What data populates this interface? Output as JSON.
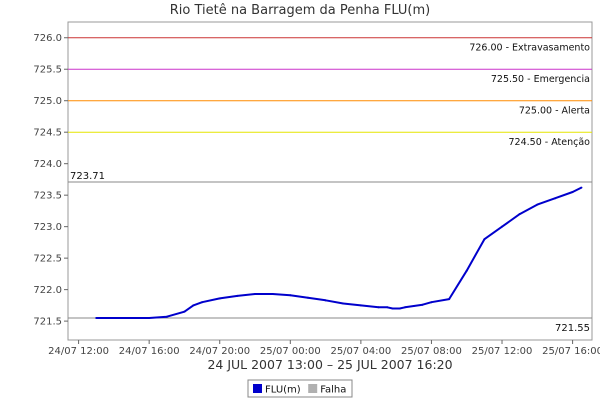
{
  "chart_data": {
    "type": "line",
    "title": "Rio Tietê na Barragem da Penha FLU(m)",
    "period_label": "24 JUL 2007 13:00 – 25 JUL 2007 16:20",
    "x_tick_labels": [
      "24/07 12:00",
      "24/07 16:00",
      "24/07 20:00",
      "25/07 00:00",
      "25/07 04:00",
      "25/07 08:00",
      "25/07 12:00",
      "25/07 16:00"
    ],
    "x_ticks_hours": [
      0,
      4,
      8,
      12,
      16,
      20,
      24,
      28
    ],
    "x_range_hours": [
      -0.6,
      29.1
    ],
    "y_ticks": [
      "721.5",
      "722.0",
      "722.5",
      "723.0",
      "723.5",
      "724.0",
      "724.5",
      "725.0",
      "725.5",
      "726.0"
    ],
    "ylim": [
      721.2,
      726.25
    ],
    "thresholds": [
      {
        "value": 726.0,
        "label": "726.00 - Extravasamento",
        "color": "#cc3333"
      },
      {
        "value": 725.5,
        "label": "725.50 - Emergencia",
        "color": "#cc33cc"
      },
      {
        "value": 725.0,
        "label": "725.00 - Alerta",
        "color": "#ff8c00"
      },
      {
        "value": 724.5,
        "label": "724.50 - Atenção",
        "color": "#e6e600"
      }
    ],
    "reference_lines": [
      {
        "value": 723.71,
        "label": "723.71",
        "position": "left",
        "color": "#888888"
      },
      {
        "value": 721.55,
        "label": "721.55",
        "position": "right",
        "color": "#888888"
      }
    ],
    "series": [
      {
        "name": "FLU(m)",
        "color": "#0000cc",
        "x_hours": [
          1.0,
          2.0,
          3.0,
          4.0,
          5.0,
          6.0,
          6.5,
          7.0,
          8.0,
          9.0,
          10.0,
          11.0,
          12.0,
          13.0,
          14.0,
          15.0,
          16.0,
          17.0,
          17.5,
          17.8,
          18.0,
          18.2,
          18.5,
          19.0,
          19.5,
          20.0,
          21.0,
          22.0,
          23.0,
          24.0,
          25.0,
          26.0,
          27.0,
          28.0,
          28.5
        ],
        "values": [
          721.55,
          721.55,
          721.55,
          721.55,
          721.57,
          721.65,
          721.75,
          721.8,
          721.86,
          721.9,
          721.93,
          721.93,
          721.91,
          721.87,
          721.83,
          721.78,
          721.75,
          721.72,
          721.72,
          721.7,
          721.7,
          721.7,
          721.72,
          721.74,
          721.76,
          721.8,
          721.85,
          722.3,
          722.8,
          723.0,
          723.2,
          723.35,
          723.45,
          723.55,
          723.62
        ]
      }
    ],
    "legend": [
      {
        "name": "FLU(m)",
        "color": "#0000cc"
      },
      {
        "name": "Falha",
        "color": "#b0b0b0"
      }
    ],
    "legend_position": "bottom"
  }
}
